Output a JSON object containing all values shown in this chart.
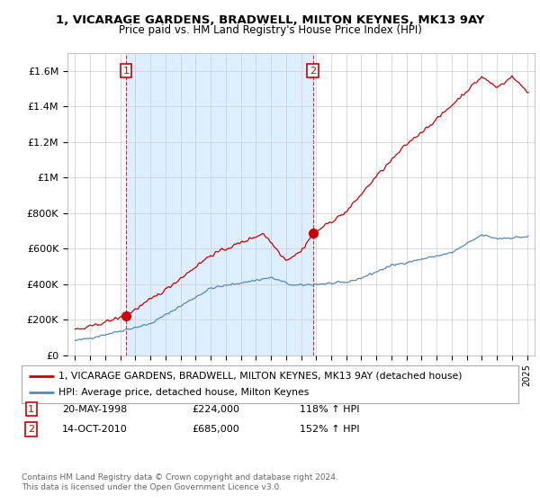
{
  "title": "1, VICARAGE GARDENS, BRADWELL, MILTON KEYNES, MK13 9AY",
  "subtitle": "Price paid vs. HM Land Registry's House Price Index (HPI)",
  "legend_line1": "1, VICARAGE GARDENS, BRADWELL, MILTON KEYNES, MK13 9AY (detached house)",
  "legend_line2": "HPI: Average price, detached house, Milton Keynes",
  "footnote": "Contains HM Land Registry data © Crown copyright and database right 2024.\nThis data is licensed under the Open Government Licence v3.0.",
  "sale1_label": "1",
  "sale1_date": "20-MAY-1998",
  "sale1_price": "£224,000",
  "sale1_hpi": "118% ↑ HPI",
  "sale2_label": "2",
  "sale2_date": "14-OCT-2010",
  "sale2_price": "£685,000",
  "sale2_hpi": "152% ↑ HPI",
  "sale1_x": 1998.38,
  "sale1_y": 224000,
  "sale2_x": 2010.79,
  "sale2_y": 685000,
  "red_color": "#cc0000",
  "blue_color": "#5588bb",
  "shade_color": "#ddeeff",
  "background_color": "#ffffff",
  "grid_color": "#cccccc",
  "ylim": [
    0,
    1700000
  ],
  "xlim": [
    1994.5,
    2025.5
  ]
}
